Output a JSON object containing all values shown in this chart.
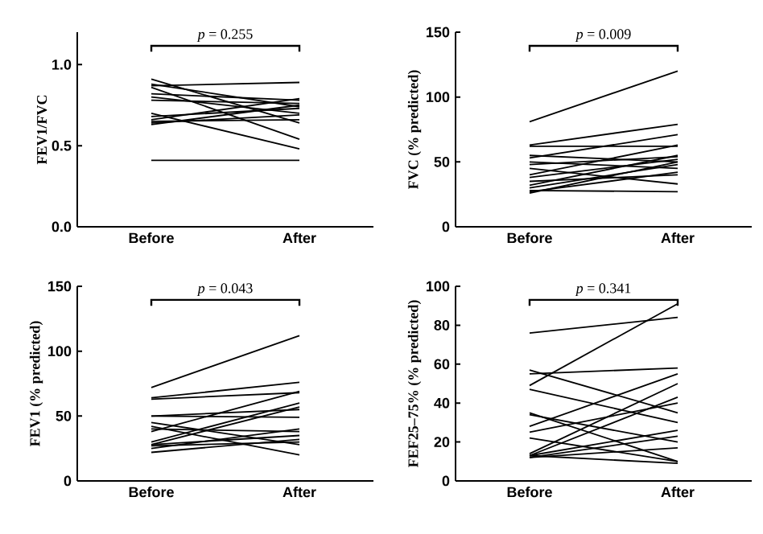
{
  "chart_data": [
    {
      "type": "line",
      "ylabel": "FEV1/FVC",
      "categories": [
        "Before",
        "After"
      ],
      "ylim": [
        0,
        1.2
      ],
      "yticks": [
        {
          "value": 0,
          "label": "0.0"
        },
        0.5,
        {
          "value": 1,
          "label": "1.0"
        }
      ],
      "annotations": [
        "*p* = 0.255"
      ],
      "marker": "none",
      "series": [
        {
          "color": "#000000",
          "values": [
            0.91,
            0.64
          ]
        },
        {
          "color": "#000000",
          "values": [
            0.88,
            0.74
          ]
        },
        {
          "color": "#000000",
          "values": [
            0.86,
            0.54
          ]
        },
        {
          "color": "#000000",
          "values": [
            0.87,
            0.89
          ]
        },
        {
          "color": "#000000",
          "values": [
            0.82,
            0.78
          ]
        },
        {
          "color": "#000000",
          "values": [
            0.8,
            0.7
          ]
        },
        {
          "color": "#000000",
          "values": [
            0.78,
            0.76
          ]
        },
        {
          "color": "#000000",
          "values": [
            0.7,
            0.48
          ]
        },
        {
          "color": "#000000",
          "values": [
            0.68,
            0.73
          ]
        },
        {
          "color": "#000000",
          "values": [
            0.66,
            0.79
          ]
        },
        {
          "color": "#000000",
          "values": [
            0.65,
            0.66
          ]
        },
        {
          "color": "#000000",
          "values": [
            0.64,
            0.69
          ]
        },
        {
          "color": "#000000",
          "values": [
            0.63,
            0.75
          ]
        },
        {
          "color": "#000000",
          "values": [
            0.41,
            0.41
          ]
        }
      ]
    },
    {
      "type": "line",
      "ylabel": "FVC (% predicted)",
      "categories": [
        "Before",
        "After"
      ],
      "ylim": [
        0,
        150
      ],
      "yticks": [
        0,
        50,
        100,
        150
      ],
      "annotations": [
        "*p* = 0.009"
      ],
      "marker": "none",
      "series": [
        {
          "color": "#000000",
          "values": [
            81,
            120
          ]
        },
        {
          "color": "#000000",
          "values": [
            63,
            79
          ]
        },
        {
          "color": "#000000",
          "values": [
            62,
            62
          ]
        },
        {
          "color": "#000000",
          "values": [
            55,
            50
          ]
        },
        {
          "color": "#000000",
          "values": [
            53,
            71
          ]
        },
        {
          "color": "#000000",
          "values": [
            50,
            45
          ]
        },
        {
          "color": "#000000",
          "values": [
            48,
            54
          ]
        },
        {
          "color": "#000000",
          "values": [
            45,
            33
          ]
        },
        {
          "color": "#000000",
          "values": [
            40,
            63
          ]
        },
        {
          "color": "#000000",
          "values": [
            38,
            52
          ]
        },
        {
          "color": "#000000",
          "values": [
            35,
            40
          ]
        },
        {
          "color": "#000000",
          "values": [
            32,
            55
          ]
        },
        {
          "color": "#000000",
          "values": [
            30,
            48
          ]
        },
        {
          "color": "#000000",
          "values": [
            28,
            27
          ]
        },
        {
          "color": "#000000",
          "values": [
            27,
            42
          ]
        },
        {
          "color": "#000000",
          "values": [
            26,
            50
          ]
        }
      ]
    },
    {
      "type": "line",
      "ylabel": "FEV1 (% predicted)",
      "categories": [
        "Before",
        "After"
      ],
      "ylim": [
        0,
        150
      ],
      "yticks": [
        0,
        50,
        100,
        150
      ],
      "annotations": [
        "*p* = 0.043"
      ],
      "marker": "none",
      "series": [
        {
          "color": "#000000",
          "values": [
            72,
            112
          ]
        },
        {
          "color": "#000000",
          "values": [
            64,
            76
          ]
        },
        {
          "color": "#000000",
          "values": [
            63,
            68
          ]
        },
        {
          "color": "#000000",
          "values": [
            50,
            55
          ]
        },
        {
          "color": "#000000",
          "values": [
            50,
            49
          ]
        },
        {
          "color": "#000000",
          "values": [
            45,
            28
          ]
        },
        {
          "color": "#000000",
          "values": [
            42,
            20
          ]
        },
        {
          "color": "#000000",
          "values": [
            40,
            38
          ]
        },
        {
          "color": "#000000",
          "values": [
            38,
            69
          ]
        },
        {
          "color": "#000000",
          "values": [
            30,
            60
          ]
        },
        {
          "color": "#000000",
          "values": [
            28,
            57
          ]
        },
        {
          "color": "#000000",
          "values": [
            28,
            35
          ]
        },
        {
          "color": "#000000",
          "values": [
            27,
            30
          ]
        },
        {
          "color": "#000000",
          "values": [
            25,
            40
          ]
        },
        {
          "color": "#000000",
          "values": [
            22,
            32
          ]
        }
      ]
    },
    {
      "type": "line",
      "ylabel": "FEF25–75% (% predicted)",
      "categories": [
        "Before",
        "After"
      ],
      "ylim": [
        0,
        100
      ],
      "yticks": [
        0,
        20,
        40,
        60,
        80,
        100
      ],
      "annotations": [
        "*p* = 0.341"
      ],
      "marker": "none",
      "series": [
        {
          "color": "#000000",
          "values": [
            76,
            84
          ]
        },
        {
          "color": "#000000",
          "values": [
            57,
            35
          ]
        },
        {
          "color": "#000000",
          "values": [
            55,
            58
          ]
        },
        {
          "color": "#000000",
          "values": [
            49,
            91
          ]
        },
        {
          "color": "#000000",
          "values": [
            47,
            30
          ]
        },
        {
          "color": "#000000",
          "values": [
            35,
            10
          ]
        },
        {
          "color": "#000000",
          "values": [
            34,
            20
          ]
        },
        {
          "color": "#000000",
          "values": [
            28,
            55
          ]
        },
        {
          "color": "#000000",
          "values": [
            25,
            40
          ]
        },
        {
          "color": "#000000",
          "values": [
            22,
            10
          ]
        },
        {
          "color": "#000000",
          "values": [
            14,
            50
          ]
        },
        {
          "color": "#000000",
          "values": [
            13,
            43
          ]
        },
        {
          "color": "#000000",
          "values": [
            13,
            26
          ]
        },
        {
          "color": "#000000",
          "values": [
            12,
            23
          ]
        },
        {
          "color": "#000000",
          "values": [
            12,
            17
          ]
        },
        {
          "color": "#000000",
          "values": [
            13,
            9
          ]
        }
      ]
    }
  ]
}
